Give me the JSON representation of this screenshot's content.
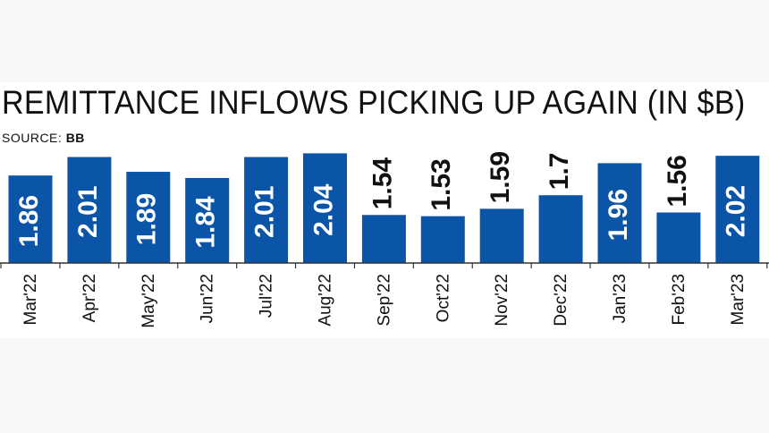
{
  "title": "REMITTANCE INFLOWS PICKING UP AGAIN (IN $B)",
  "source_label": "SOURCE:",
  "source_value": "BB",
  "colors": {
    "bar": "#0a55a8",
    "label_inside": "#ffffff",
    "label_outside": "#111111",
    "axis": "#333333"
  },
  "chart_data": {
    "type": "bar",
    "categories": [
      "Mar'22",
      "Apr'22",
      "May'22",
      "Jun'22",
      "Jul'22",
      "Aug'22",
      "Sep'22",
      "Oct'22",
      "Nov'22",
      "Dec'22",
      "Jan'23",
      "Feb'23",
      "Mar'23"
    ],
    "values": [
      1.86,
      2.01,
      1.89,
      1.84,
      2.01,
      2.04,
      1.54,
      1.53,
      1.59,
      1.7,
      1.96,
      1.56,
      2.02
    ],
    "value_labels": [
      "1.86",
      "2.01",
      "1.89",
      "1.84",
      "2.01",
      "2.04",
      "1.54",
      "1.53",
      "1.59",
      "1.7",
      "1.96",
      "1.56",
      "2.02"
    ],
    "title": "REMITTANCE INFLOWS PICKING UP AGAIN (IN $B)",
    "xlabel": "",
    "ylabel": "",
    "ylim": [
      1.15,
      2.05
    ],
    "grid": false,
    "legend": "none"
  }
}
